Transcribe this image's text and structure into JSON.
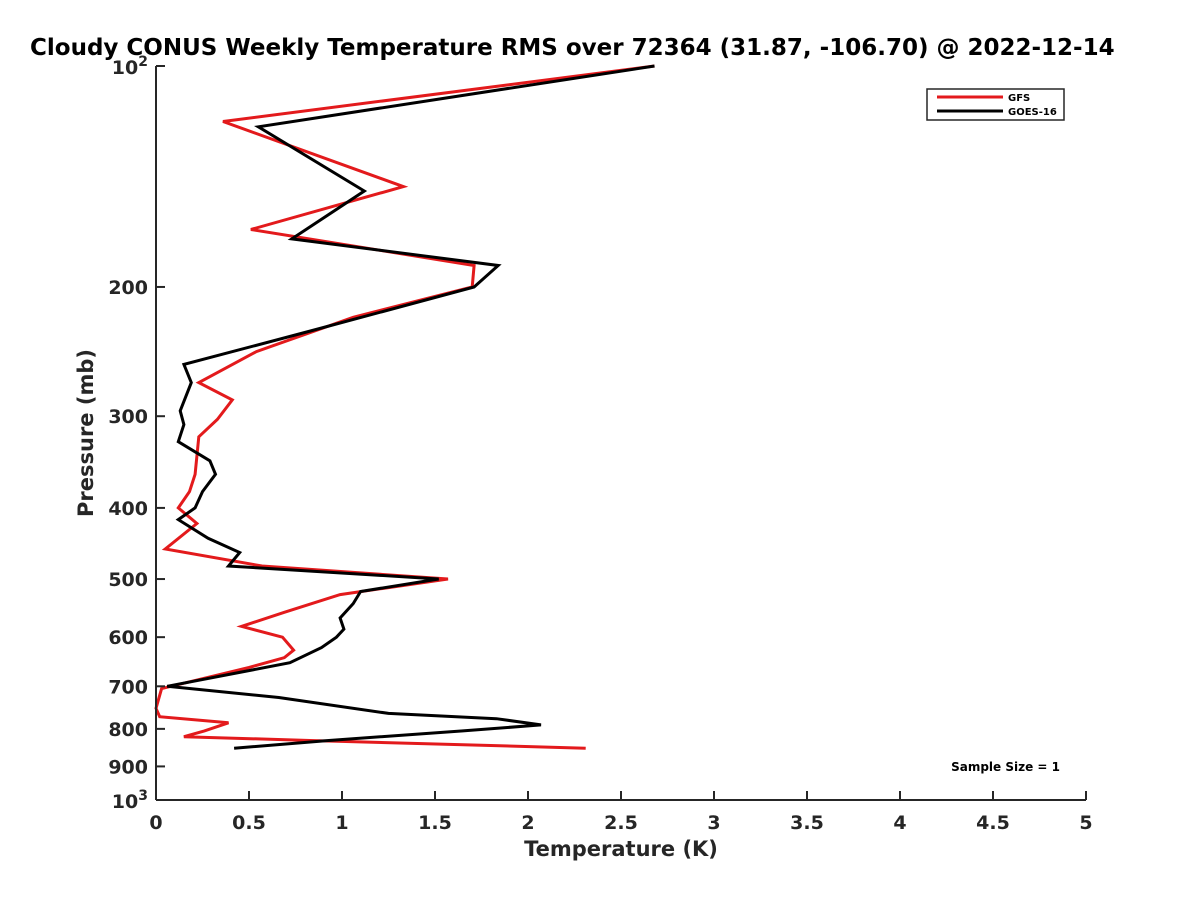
{
  "chart_data": {
    "type": "line",
    "title": "Cloudy CONUS Weekly Temperature RMS over 72364 (31.87, -106.70) @ 2022-12-14",
    "xlabel": "Temperature (K)",
    "ylabel": "Pressure (mb)",
    "xlim": [
      0,
      5
    ],
    "ylim": [
      100,
      1000
    ],
    "y_scale": "log",
    "y_reversed": true,
    "grid": false,
    "legend_position": "top-right",
    "x_ticks": [
      {
        "value": 0,
        "label": "0"
      },
      {
        "value": 0.5,
        "label": "0.5"
      },
      {
        "value": 1,
        "label": "1"
      },
      {
        "value": 1.5,
        "label": "1.5"
      },
      {
        "value": 2,
        "label": "2"
      },
      {
        "value": 2.5,
        "label": "2.5"
      },
      {
        "value": 3,
        "label": "3"
      },
      {
        "value": 3.5,
        "label": "3.5"
      },
      {
        "value": 4,
        "label": "4"
      },
      {
        "value": 4.5,
        "label": "4.5"
      },
      {
        "value": 5,
        "label": "5"
      }
    ],
    "y_ticks": [
      {
        "value": 100,
        "base": "10",
        "exp": "2"
      },
      {
        "value": 200,
        "label": "200"
      },
      {
        "value": 300,
        "label": "300"
      },
      {
        "value": 400,
        "label": "400"
      },
      {
        "value": 500,
        "label": "500"
      },
      {
        "value": 600,
        "label": "600"
      },
      {
        "value": 700,
        "label": "700"
      },
      {
        "value": 800,
        "label": "800"
      },
      {
        "value": 900,
        "label": "900"
      },
      {
        "value": 1000,
        "base": "10",
        "exp": "3"
      }
    ],
    "series": [
      {
        "name": "GFS",
        "color": "#e31a1c",
        "points": [
          [
            2.68,
            100
          ],
          [
            0.36,
            119
          ],
          [
            1.33,
            146
          ],
          [
            0.51,
            167
          ],
          [
            1.71,
            187
          ],
          [
            1.7,
            200
          ],
          [
            1.06,
            220
          ],
          [
            0.54,
            245
          ],
          [
            0.23,
            270
          ],
          [
            0.41,
            285
          ],
          [
            0.33,
            303
          ],
          [
            0.23,
            320
          ],
          [
            0.21,
            360
          ],
          [
            0.18,
            380
          ],
          [
            0.12,
            400
          ],
          [
            0.22,
            420
          ],
          [
            0.05,
            455
          ],
          [
            0.57,
            480
          ],
          [
            1.57,
            500
          ],
          [
            0.99,
            525
          ],
          [
            0.69,
            555
          ],
          [
            0.46,
            580
          ],
          [
            0.68,
            600
          ],
          [
            0.74,
            625
          ],
          [
            0.69,
            640
          ],
          [
            0.5,
            660
          ],
          [
            0.03,
            705
          ],
          [
            0.0,
            750
          ],
          [
            0.02,
            770
          ],
          [
            0.39,
            785
          ],
          [
            0.26,
            805
          ],
          [
            0.15,
            820
          ],
          [
            0.85,
            830
          ],
          [
            2.31,
            850
          ]
        ]
      },
      {
        "name": "GOES-16",
        "color": "#000000",
        "points": [
          [
            2.68,
            100
          ],
          [
            0.55,
            121
          ],
          [
            1.12,
            148
          ],
          [
            0.73,
            172
          ],
          [
            1.84,
            187
          ],
          [
            1.71,
            200
          ],
          [
            0.82,
            230
          ],
          [
            0.15,
            255
          ],
          [
            0.19,
            270
          ],
          [
            0.13,
            295
          ],
          [
            0.15,
            308
          ],
          [
            0.12,
            325
          ],
          [
            0.29,
            345
          ],
          [
            0.32,
            360
          ],
          [
            0.25,
            380
          ],
          [
            0.21,
            400
          ],
          [
            0.12,
            415
          ],
          [
            0.28,
            440
          ],
          [
            0.45,
            460
          ],
          [
            0.39,
            480
          ],
          [
            1.52,
            500
          ],
          [
            1.1,
            520
          ],
          [
            1.06,
            540
          ],
          [
            0.99,
            565
          ],
          [
            1.01,
            585
          ],
          [
            0.97,
            600
          ],
          [
            0.89,
            620
          ],
          [
            0.72,
            650
          ],
          [
            0.06,
            700
          ],
          [
            0.66,
            725
          ],
          [
            1.25,
            762
          ],
          [
            1.83,
            775
          ],
          [
            2.07,
            790
          ],
          [
            1.65,
            805
          ],
          [
            0.92,
            830
          ],
          [
            0.42,
            850
          ]
        ]
      }
    ],
    "annotations": [
      "Sample Size = 1"
    ]
  }
}
